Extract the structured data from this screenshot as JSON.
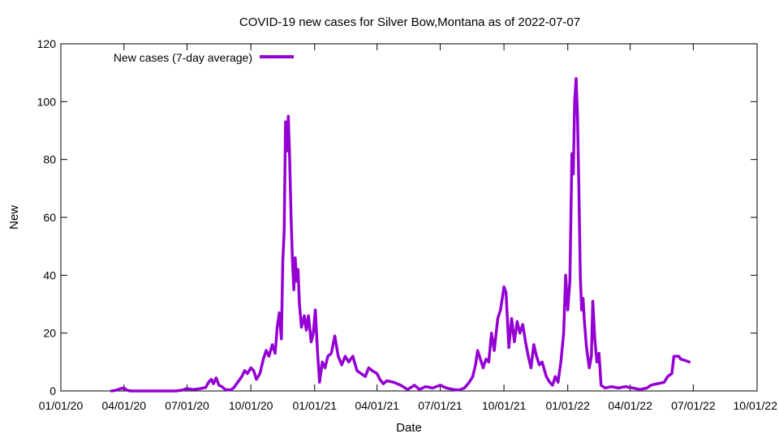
{
  "chart_data": {
    "type": "line",
    "title": "COVID-19 new cases for Silver Bow,Montana as of 2022-07-07",
    "xlabel": "Date",
    "ylabel": "New",
    "x_ticks": [
      "01/01/20",
      "04/01/20",
      "07/01/20",
      "10/01/20",
      "01/01/21",
      "04/01/21",
      "07/01/21",
      "10/01/21",
      "01/01/22",
      "04/01/22",
      "07/01/22",
      "10/01/22"
    ],
    "x_tick_dates": [
      "2020-01-01",
      "2020-04-01",
      "2020-07-01",
      "2020-10-01",
      "2021-01-01",
      "2021-04-01",
      "2021-07-01",
      "2021-10-01",
      "2022-01-01",
      "2022-04-01",
      "2022-07-01",
      "2022-10-01"
    ],
    "xlim": [
      "2020-01-01",
      "2022-10-01"
    ],
    "ylim": [
      0,
      120
    ],
    "y_ticks": [
      0,
      20,
      40,
      60,
      80,
      100,
      120
    ],
    "legend_position": "top-left",
    "series": [
      {
        "name": "New cases (7-day average)",
        "color": "#9400d3",
        "points": [
          [
            "2020-03-14",
            0
          ],
          [
            "2020-03-20",
            0.2
          ],
          [
            "2020-03-27",
            0.8
          ],
          [
            "2020-04-01",
            1
          ],
          [
            "2020-04-05",
            0.3
          ],
          [
            "2020-04-10",
            0
          ],
          [
            "2020-05-15",
            0
          ],
          [
            "2020-06-15",
            0
          ],
          [
            "2020-06-25",
            0.3
          ],
          [
            "2020-06-30",
            0.8
          ],
          [
            "2020-07-10",
            0.5
          ],
          [
            "2020-07-20",
            0.8
          ],
          [
            "2020-07-28",
            1.2
          ],
          [
            "2020-08-01",
            3
          ],
          [
            "2020-08-05",
            4
          ],
          [
            "2020-08-08",
            2.5
          ],
          [
            "2020-08-12",
            4.5
          ],
          [
            "2020-08-16",
            2
          ],
          [
            "2020-08-20",
            1.5
          ],
          [
            "2020-08-25",
            0.5
          ],
          [
            "2020-09-01",
            0.3
          ],
          [
            "2020-09-06",
            1
          ],
          [
            "2020-09-12",
            3
          ],
          [
            "2020-09-18",
            5
          ],
          [
            "2020-09-22",
            7
          ],
          [
            "2020-09-26",
            6
          ],
          [
            "2020-10-01",
            8
          ],
          [
            "2020-10-05",
            7
          ],
          [
            "2020-10-09",
            4
          ],
          [
            "2020-10-14",
            6
          ],
          [
            "2020-10-19",
            11
          ],
          [
            "2020-10-23",
            14
          ],
          [
            "2020-10-27",
            12
          ],
          [
            "2020-11-01",
            16
          ],
          [
            "2020-11-05",
            13
          ],
          [
            "2020-11-08",
            22
          ],
          [
            "2020-11-11",
            27
          ],
          [
            "2020-11-14",
            18
          ],
          [
            "2020-11-16",
            45
          ],
          [
            "2020-11-18",
            55
          ],
          [
            "2020-11-20",
            93
          ],
          [
            "2020-11-22",
            83
          ],
          [
            "2020-11-24",
            95
          ],
          [
            "2020-11-26",
            80
          ],
          [
            "2020-11-28",
            60
          ],
          [
            "2020-11-30",
            45
          ],
          [
            "2020-12-02",
            35
          ],
          [
            "2020-12-04",
            46
          ],
          [
            "2020-12-06",
            38
          ],
          [
            "2020-12-08",
            42
          ],
          [
            "2020-12-10",
            30
          ],
          [
            "2020-12-13",
            22
          ],
          [
            "2020-12-17",
            26
          ],
          [
            "2020-12-20",
            21
          ],
          [
            "2020-12-23",
            26
          ],
          [
            "2020-12-27",
            17
          ],
          [
            "2020-12-30",
            20
          ],
          [
            "2021-01-02",
            28
          ],
          [
            "2021-01-05",
            14
          ],
          [
            "2021-01-08",
            3
          ],
          [
            "2021-01-12",
            10
          ],
          [
            "2021-01-16",
            8
          ],
          [
            "2021-01-20",
            12
          ],
          [
            "2021-01-25",
            13
          ],
          [
            "2021-01-30",
            19
          ],
          [
            "2021-02-04",
            12
          ],
          [
            "2021-02-09",
            9
          ],
          [
            "2021-02-14",
            12
          ],
          [
            "2021-02-19",
            10
          ],
          [
            "2021-02-25",
            12
          ],
          [
            "2021-03-03",
            7
          ],
          [
            "2021-03-09",
            6
          ],
          [
            "2021-03-15",
            5
          ],
          [
            "2021-03-20",
            8
          ],
          [
            "2021-03-25",
            7
          ],
          [
            "2021-04-01",
            6
          ],
          [
            "2021-04-05",
            4
          ],
          [
            "2021-04-10",
            2.5
          ],
          [
            "2021-04-15",
            3.5
          ],
          [
            "2021-04-25",
            3
          ],
          [
            "2021-05-05",
            2
          ],
          [
            "2021-05-15",
            0.5
          ],
          [
            "2021-05-25",
            2
          ],
          [
            "2021-06-01",
            0.5
          ],
          [
            "2021-06-10",
            1.5
          ],
          [
            "2021-06-20",
            1
          ],
          [
            "2021-07-01",
            2
          ],
          [
            "2021-07-10",
            1
          ],
          [
            "2021-07-20",
            0.5
          ],
          [
            "2021-07-28",
            0.3
          ],
          [
            "2021-08-05",
            1
          ],
          [
            "2021-08-12",
            3
          ],
          [
            "2021-08-17",
            5
          ],
          [
            "2021-08-21",
            9
          ],
          [
            "2021-08-24",
            14
          ],
          [
            "2021-08-28",
            11
          ],
          [
            "2021-09-01",
            8
          ],
          [
            "2021-09-05",
            11
          ],
          [
            "2021-09-09",
            10
          ],
          [
            "2021-09-13",
            20
          ],
          [
            "2021-09-17",
            14
          ],
          [
            "2021-09-22",
            25
          ],
          [
            "2021-09-26",
            28
          ],
          [
            "2021-10-01",
            36
          ],
          [
            "2021-10-04",
            34
          ],
          [
            "2021-10-08",
            15
          ],
          [
            "2021-10-12",
            25
          ],
          [
            "2021-10-16",
            17
          ],
          [
            "2021-10-20",
            24
          ],
          [
            "2021-10-24",
            20
          ],
          [
            "2021-10-28",
            23
          ],
          [
            "2021-11-01",
            17
          ],
          [
            "2021-11-05",
            12
          ],
          [
            "2021-11-09",
            8
          ],
          [
            "2021-11-13",
            16
          ],
          [
            "2021-11-17",
            12
          ],
          [
            "2021-11-21",
            9
          ],
          [
            "2021-11-25",
            10
          ],
          [
            "2021-12-01",
            5
          ],
          [
            "2021-12-06",
            3
          ],
          [
            "2021-12-10",
            2
          ],
          [
            "2021-12-14",
            5
          ],
          [
            "2021-12-18",
            3
          ],
          [
            "2021-12-22",
            10
          ],
          [
            "2021-12-26",
            20
          ],
          [
            "2021-12-29",
            40
          ],
          [
            "2022-01-01",
            28
          ],
          [
            "2022-01-04",
            38
          ],
          [
            "2022-01-07",
            82
          ],
          [
            "2022-01-09",
            75
          ],
          [
            "2022-01-11",
            100
          ],
          [
            "2022-01-13",
            108
          ],
          [
            "2022-01-15",
            95
          ],
          [
            "2022-01-17",
            70
          ],
          [
            "2022-01-19",
            40
          ],
          [
            "2022-01-21",
            28
          ],
          [
            "2022-01-23",
            32
          ],
          [
            "2022-01-25",
            24
          ],
          [
            "2022-01-28",
            15
          ],
          [
            "2022-02-01",
            8
          ],
          [
            "2022-02-04",
            12
          ],
          [
            "2022-02-06",
            31
          ],
          [
            "2022-02-09",
            18
          ],
          [
            "2022-02-12",
            10
          ],
          [
            "2022-02-15",
            13
          ],
          [
            "2022-02-18",
            2
          ],
          [
            "2022-02-24",
            1
          ],
          [
            "2022-03-05",
            1.5
          ],
          [
            "2022-03-15",
            1
          ],
          [
            "2022-03-25",
            1.5
          ],
          [
            "2022-04-05",
            1
          ],
          [
            "2022-04-15",
            0.5
          ],
          [
            "2022-04-25",
            1
          ],
          [
            "2022-05-01",
            2
          ],
          [
            "2022-05-10",
            2.5
          ],
          [
            "2022-05-20",
            3
          ],
          [
            "2022-05-25",
            5
          ],
          [
            "2022-05-31",
            6
          ],
          [
            "2022-06-03",
            12
          ],
          [
            "2022-06-10",
            12
          ],
          [
            "2022-06-13",
            11
          ],
          [
            "2022-06-20",
            10.5
          ],
          [
            "2022-06-25",
            10
          ]
        ]
      }
    ]
  }
}
